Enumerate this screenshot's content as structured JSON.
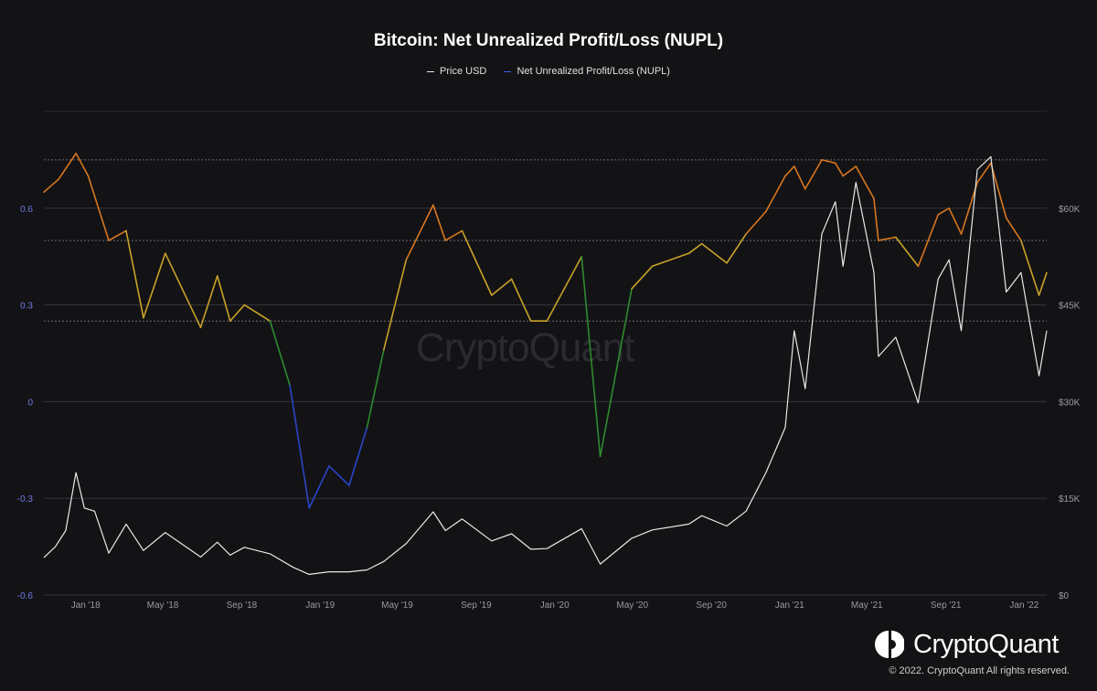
{
  "chart_data": {
    "type": "line",
    "title": "Bitcoin: Net Unrealized Profit/Loss (NUPL)",
    "legend": [
      "Price USD",
      "Net Unrealized Profit/Loss (NUPL)"
    ],
    "legend_position": "top-center",
    "grid": true,
    "x_range": [
      "2017-10-28",
      "2022-02-05"
    ],
    "x_ticks": [
      {
        "date": "2018-01-01",
        "label": "Jan '18"
      },
      {
        "date": "2018-05-01",
        "label": "May '18"
      },
      {
        "date": "2018-09-01",
        "label": "Sep '18"
      },
      {
        "date": "2019-01-01",
        "label": "Jan '19"
      },
      {
        "date": "2019-05-01",
        "label": "May '19"
      },
      {
        "date": "2019-09-01",
        "label": "Sep '19"
      },
      {
        "date": "2020-01-01",
        "label": "Jan '20"
      },
      {
        "date": "2020-05-01",
        "label": "May '20"
      },
      {
        "date": "2020-09-01",
        "label": "Sep '20"
      },
      {
        "date": "2021-01-01",
        "label": "Jan '21"
      },
      {
        "date": "2021-05-01",
        "label": "May '21"
      },
      {
        "date": "2021-09-01",
        "label": "Sep '21"
      },
      {
        "date": "2022-01-01",
        "label": "Jan '22"
      }
    ],
    "left_axis": {
      "min": -0.6,
      "max": 0.9,
      "ticks": [
        {
          "value": 0.6,
          "label": "0.6"
        },
        {
          "value": 0.3,
          "label": "0.3"
        },
        {
          "value": 0,
          "label": "0"
        },
        {
          "value": -0.3,
          "label": "-0.3"
        },
        {
          "value": -0.6,
          "label": "-0.6"
        }
      ]
    },
    "right_axis": {
      "min": 0,
      "max": 75000,
      "ticks": [
        {
          "value": 60000,
          "label": "$60K"
        },
        {
          "value": 45000,
          "label": "$45K"
        },
        {
          "value": 30000,
          "label": "$30K"
        },
        {
          "value": 15000,
          "label": "$15K"
        },
        {
          "value": 0,
          "label": "$0"
        }
      ]
    },
    "reference_lines": [
      0.75,
      0.5,
      0.25
    ],
    "zone_colors": {
      "capitulation": "#2a45c8",
      "hope_fear": "#2e8b2e",
      "optimism": "#c9a227",
      "belief": "#d9761e",
      "euphoria": "#c23a2a"
    },
    "series": [
      {
        "name": "Price USD",
        "axis": "right",
        "color": "#e8e8e8",
        "points": [
          [
            "2017-10-28",
            5800
          ],
          [
            "2017-11-15",
            7500
          ],
          [
            "2017-12-01",
            10000
          ],
          [
            "2017-12-17",
            19000
          ],
          [
            "2017-12-30",
            13500
          ],
          [
            "2018-01-15",
            13000
          ],
          [
            "2018-02-06",
            6500
          ],
          [
            "2018-03-05",
            11000
          ],
          [
            "2018-04-01",
            6900
          ],
          [
            "2018-05-05",
            9700
          ],
          [
            "2018-06-29",
            5900
          ],
          [
            "2018-07-25",
            8200
          ],
          [
            "2018-08-14",
            6200
          ],
          [
            "2018-09-05",
            7400
          ],
          [
            "2018-10-15",
            6400
          ],
          [
            "2018-11-20",
            4300
          ],
          [
            "2018-12-15",
            3200
          ],
          [
            "2019-01-15",
            3600
          ],
          [
            "2019-02-15",
            3600
          ],
          [
            "2019-03-15",
            3900
          ],
          [
            "2019-04-10",
            5200
          ],
          [
            "2019-05-15",
            8000
          ],
          [
            "2019-06-26",
            12900
          ],
          [
            "2019-07-15",
            10000
          ],
          [
            "2019-08-10",
            11800
          ],
          [
            "2019-09-25",
            8400
          ],
          [
            "2019-10-26",
            9500
          ],
          [
            "2019-11-25",
            7100
          ],
          [
            "2019-12-20",
            7200
          ],
          [
            "2020-02-12",
            10300
          ],
          [
            "2020-03-12",
            4800
          ],
          [
            "2020-04-30",
            8800
          ],
          [
            "2020-06-01",
            10100
          ],
          [
            "2020-07-28",
            11000
          ],
          [
            "2020-08-17",
            12300
          ],
          [
            "2020-09-25",
            10700
          ],
          [
            "2020-10-25",
            13000
          ],
          [
            "2020-11-25",
            19000
          ],
          [
            "2020-12-25",
            26000
          ],
          [
            "2021-01-08",
            41000
          ],
          [
            "2021-01-25",
            32000
          ],
          [
            "2021-02-20",
            56000
          ],
          [
            "2021-03-13",
            61000
          ],
          [
            "2021-03-25",
            51000
          ],
          [
            "2021-04-14",
            64000
          ],
          [
            "2021-05-12",
            50000
          ],
          [
            "2021-05-19",
            37000
          ],
          [
            "2021-06-15",
            40000
          ],
          [
            "2021-07-20",
            29800
          ],
          [
            "2021-08-20",
            49000
          ],
          [
            "2021-09-06",
            52000
          ],
          [
            "2021-09-25",
            41000
          ],
          [
            "2021-10-20",
            66000
          ],
          [
            "2021-11-10",
            68000
          ],
          [
            "2021-12-04",
            47000
          ],
          [
            "2021-12-27",
            50000
          ],
          [
            "2022-01-24",
            34000
          ],
          [
            "2022-02-05",
            41000
          ]
        ]
      },
      {
        "name": "Net Unrealized Profit/Loss (NUPL)",
        "axis": "left",
        "color": "#3d5ee8",
        "points": [
          [
            "2017-10-28",
            0.65
          ],
          [
            "2017-11-20",
            0.69
          ],
          [
            "2017-12-17",
            0.77
          ],
          [
            "2018-01-05",
            0.7
          ],
          [
            "2018-02-06",
            0.5
          ],
          [
            "2018-03-05",
            0.53
          ],
          [
            "2018-04-01",
            0.26
          ],
          [
            "2018-05-05",
            0.46
          ],
          [
            "2018-06-29",
            0.23
          ],
          [
            "2018-07-25",
            0.39
          ],
          [
            "2018-08-14",
            0.25
          ],
          [
            "2018-09-05",
            0.3
          ],
          [
            "2018-10-15",
            0.25
          ],
          [
            "2018-11-15",
            0.05
          ],
          [
            "2018-12-15",
            -0.33
          ],
          [
            "2019-01-15",
            -0.2
          ],
          [
            "2019-02-15",
            -0.26
          ],
          [
            "2019-03-15",
            -0.08
          ],
          [
            "2019-04-10",
            0.16
          ],
          [
            "2019-05-15",
            0.44
          ],
          [
            "2019-06-26",
            0.61
          ],
          [
            "2019-07-15",
            0.5
          ],
          [
            "2019-08-10",
            0.53
          ],
          [
            "2019-09-25",
            0.33
          ],
          [
            "2019-10-26",
            0.38
          ],
          [
            "2019-11-25",
            0.25
          ],
          [
            "2019-12-20",
            0.25
          ],
          [
            "2020-02-12",
            0.45
          ],
          [
            "2020-03-12",
            -0.17
          ],
          [
            "2020-04-30",
            0.35
          ],
          [
            "2020-06-01",
            0.42
          ],
          [
            "2020-07-28",
            0.46
          ],
          [
            "2020-08-17",
            0.49
          ],
          [
            "2020-09-25",
            0.43
          ],
          [
            "2020-10-25",
            0.52
          ],
          [
            "2020-11-25",
            0.59
          ],
          [
            "2020-12-25",
            0.7
          ],
          [
            "2021-01-08",
            0.73
          ],
          [
            "2021-01-25",
            0.66
          ],
          [
            "2021-02-20",
            0.75
          ],
          [
            "2021-03-13",
            0.74
          ],
          [
            "2021-03-25",
            0.7
          ],
          [
            "2021-04-14",
            0.73
          ],
          [
            "2021-05-12",
            0.63
          ],
          [
            "2021-05-19",
            0.5
          ],
          [
            "2021-06-15",
            0.51
          ],
          [
            "2021-07-20",
            0.42
          ],
          [
            "2021-08-20",
            0.58
          ],
          [
            "2021-09-06",
            0.6
          ],
          [
            "2021-09-25",
            0.52
          ],
          [
            "2021-10-20",
            0.68
          ],
          [
            "2021-11-10",
            0.74
          ],
          [
            "2021-12-04",
            0.57
          ],
          [
            "2021-12-27",
            0.5
          ],
          [
            "2022-01-24",
            0.33
          ],
          [
            "2022-02-05",
            0.4
          ]
        ]
      }
    ]
  },
  "branding": {
    "watermark": "CryptoQuant",
    "brand_name": "CryptoQuant",
    "copyright": "© 2022. CryptoQuant All rights reserved."
  }
}
